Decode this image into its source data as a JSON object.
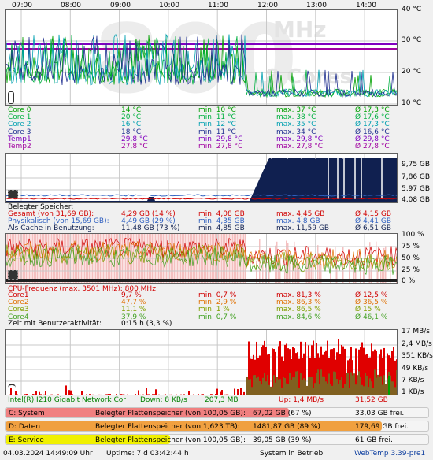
{
  "time_axis": [
    "07:00",
    "08:00",
    "09:00",
    "10:00",
    "11:00",
    "12:00",
    "13:00",
    "14:00"
  ],
  "temp_graph": {
    "y_labels": [
      "40 °C",
      "30 °C",
      "20 °C",
      "10 °C"
    ],
    "watermark_digits": "800",
    "watermark_unit": "MHz",
    "watermark_sub": "8 Cores",
    "rows": [
      {
        "name": "Core 0",
        "color": "#00a000",
        "cur": "14 °C",
        "min": "min. 10 °C",
        "max": "max. 37 °C",
        "avg": "Ø 17,3 °C"
      },
      {
        "name": "Core 1",
        "color": "#00b040",
        "cur": "20 °C",
        "min": "min. 11 °C",
        "max": "max. 38 °C",
        "avg": "Ø 17,6 °C"
      },
      {
        "name": "Core 2",
        "color": "#00a0b0",
        "cur": "16 °C",
        "min": "min. 12 °C",
        "max": "max. 35 °C",
        "avg": "Ø 17,3 °C"
      },
      {
        "name": "Core 3",
        "color": "#203090",
        "cur": "18 °C",
        "min": "min. 11 °C",
        "max": "max. 34 °C",
        "avg": "Ø 16,6 °C"
      },
      {
        "name": "Temp1",
        "color": "#8000c0",
        "cur": "29,8 °C",
        "min": "min. 29,8 °C",
        "max": "max. 29,8 °C",
        "avg": "Ø 29,8 °C"
      },
      {
        "name": "Temp2",
        "color": "#a000a0",
        "cur": "27,8 °C",
        "min": "min. 27,8 °C",
        "max": "max. 27,8 °C",
        "avg": "Ø 27,8 °C"
      }
    ]
  },
  "mem_graph": {
    "y_labels": [
      "9,75 GB",
      "7,86 GB",
      "5,97 GB",
      "4,08 GB"
    ],
    "title": "Belegter Speicher:",
    "rows": [
      {
        "name": "Gesamt (von 31,69 GB):",
        "color": "#d00000",
        "cur": "4,29 GB (14 %)",
        "min": "min. 4,08 GB",
        "max": "max. 4,45 GB",
        "avg": "Ø 4,15 GB"
      },
      {
        "name": "Physikalisch (von 15,69 GB):",
        "color": "#3060c0",
        "cur": "4,49 GB (29 %)",
        "min": "min. 4,35 GB",
        "max": "max. 4,8 GB",
        "avg": "Ø 4,41 GB"
      },
      {
        "name": "Als Cache in Benutzung:",
        "color": "#102050",
        "cur": "11,48 GB (73 %)",
        "min": "min. 4,85 GB",
        "max": "max. 11,59 GB",
        "avg": "Ø 6,51 GB"
      }
    ]
  },
  "cpu_graph": {
    "y_labels": [
      "100 %",
      "75 %",
      "50 %",
      "25 %",
      "0 %"
    ],
    "title": "CPU-Frequenz (max. 3501 MHz): 800 MHz",
    "rows": [
      {
        "name": "Core1",
        "color": "#d00000",
        "cur": "9,7 %",
        "min": "min. 0,7 %",
        "max": "max. 81,3 %",
        "avg": "Ø 12,5 %"
      },
      {
        "name": "Core2",
        "color": "#e07000",
        "cur": "47,7 %",
        "min": "min. 2,9 %",
        "max": "max. 86,3 %",
        "avg": "Ø 36,5 %"
      },
      {
        "name": "Core3",
        "color": "#80a000",
        "cur": "11,1 %",
        "min": "min. 1 %",
        "max": "max. 86,5 %",
        "avg": "Ø 15 %"
      },
      {
        "name": "Core4",
        "color": "#40a020",
        "cur": "37,9 %",
        "min": "min. 0,7 %",
        "max": "max. 84,6 %",
        "avg": "Ø 46,1 %"
      }
    ],
    "activity_label": "Zeit mit Benutzeraktivität:",
    "activity_value": "0:15 h (3,3 %)"
  },
  "net_graph": {
    "y_labels": [
      "17 MB/s",
      "2,4 MB/s",
      "351 KB/s",
      "49 KB/s",
      "7 KB/s",
      "1 KB/s"
    ],
    "row": {
      "name": "Intel(R) I210 Gigabit Network Cor",
      "down": "Down: 8 KB/s",
      "down_total": "207,3 MB",
      "up": "Up: 1,4 MB/s",
      "up_total": "31,52 GB"
    }
  },
  "disks": [
    {
      "name": "C: System",
      "label": "Belegter Plattenspeicher (von 100,05 GB):",
      "used": "67,02 GB (67 %)",
      "free": "33,03 GB frei.",
      "pct": 67,
      "color": "#f08080"
    },
    {
      "name": "D: Daten",
      "label": "Belegter Plattenspeicher (von 1,623 TB):",
      "used": "1481,87 GB (89 %)",
      "free": "179,69 GB frei.",
      "pct": 89,
      "color": "#f0a040"
    },
    {
      "name": "E: Service",
      "label": "Belegter Plattenspeicher (von 100,05 GB):",
      "used": "39,05 GB (39 %)",
      "free": "61 GB frei.",
      "pct": 39,
      "color": "#f0f000"
    }
  ],
  "footer": {
    "datetime": "04.03.2024 14:49:09 Uhr",
    "uptime": "Uptime: 7 d 03:42:44 h",
    "status": "System in Betrieb",
    "version": "WebTemp 3.39-pre1"
  }
}
